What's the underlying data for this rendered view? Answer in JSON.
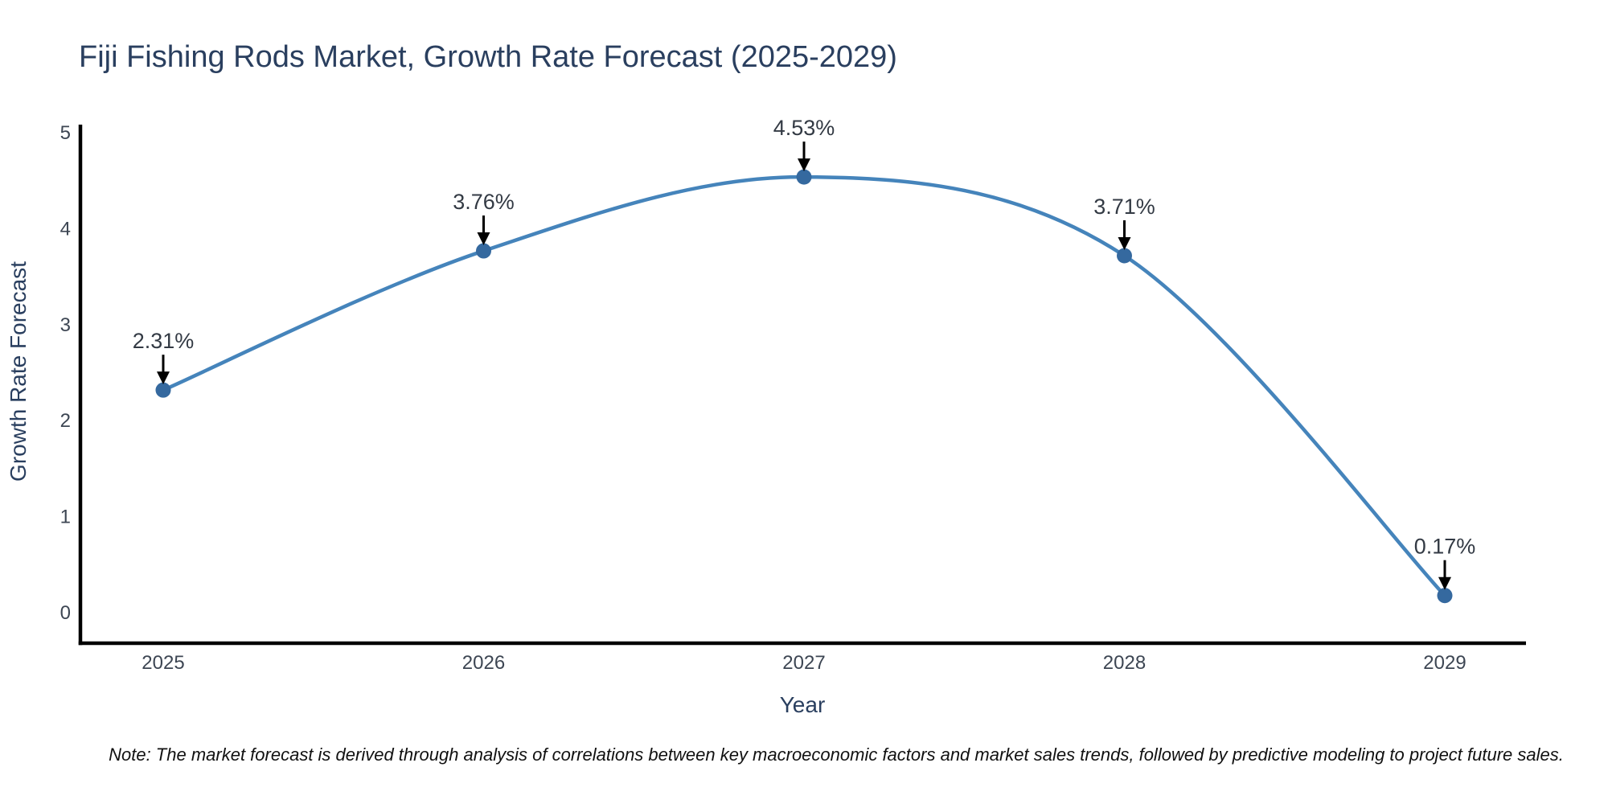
{
  "note": "Note: The market forecast is derived through analysis of correlations between key macroeconomic factors and market sales trends, followed by predictive modeling to project future sales.",
  "chart_data": {
    "type": "line",
    "title": "Fiji Fishing Rods Market, Growth Rate Forecast (2025-2029)",
    "xlabel": "Year",
    "ylabel": "Growth Rate Forecast",
    "categories": [
      "2025",
      "2026",
      "2027",
      "2028",
      "2029"
    ],
    "series": [
      {
        "name": "Growth Rate Forecast",
        "values": [
          2.31,
          3.76,
          4.53,
          3.71,
          0.17
        ]
      }
    ],
    "point_labels": [
      "2.31%",
      "3.76%",
      "4.53%",
      "3.71%",
      "0.17%"
    ],
    "yticks": [
      0,
      1,
      2,
      3,
      4,
      5
    ],
    "ylim": [
      -0.35,
      5.05
    ],
    "grid": false,
    "legend_position": "none",
    "line_shape": "spline",
    "colors": {
      "line": "#4584bb",
      "marker": "#35699f",
      "axis": "#000000",
      "arrow": "#000000",
      "title": "#2a3f5f",
      "tick": "#3d4653",
      "annotation": "#333a44"
    }
  }
}
